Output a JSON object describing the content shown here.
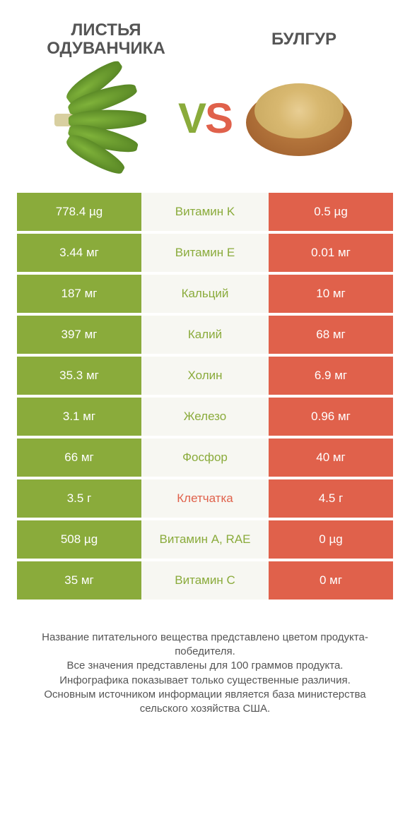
{
  "colors": {
    "green": "#8aab3b",
    "orange": "#e0614b",
    "mid_bg": "#f7f7f2",
    "text": "#555555"
  },
  "header": {
    "left_title": "ЛИСТЬЯ ОДУВАНЧИКА",
    "right_title": "БУЛГУР",
    "vs_v": "V",
    "vs_s": "S"
  },
  "table": {
    "rows": [
      {
        "left": "778.4 µg",
        "nutrient": "Витамин K",
        "right": "0.5 µg",
        "winner": "left"
      },
      {
        "left": "3.44 мг",
        "nutrient": "Витамин E",
        "right": "0.01 мг",
        "winner": "left"
      },
      {
        "left": "187 мг",
        "nutrient": "Кальций",
        "right": "10 мг",
        "winner": "left"
      },
      {
        "left": "397 мг",
        "nutrient": "Калий",
        "right": "68 мг",
        "winner": "left"
      },
      {
        "left": "35.3 мг",
        "nutrient": "Холин",
        "right": "6.9 мг",
        "winner": "left"
      },
      {
        "left": "3.1 мг",
        "nutrient": "Железо",
        "right": "0.96 мг",
        "winner": "left"
      },
      {
        "left": "66 мг",
        "nutrient": "Фосфор",
        "right": "40 мг",
        "winner": "left"
      },
      {
        "left": "3.5 г",
        "nutrient": "Клетчатка",
        "right": "4.5 г",
        "winner": "right"
      },
      {
        "left": "508 µg",
        "nutrient": "Витамин A, RAE",
        "right": "0 µg",
        "winner": "left"
      },
      {
        "left": "35 мг",
        "nutrient": "Витамин C",
        "right": "0 мг",
        "winner": "left"
      }
    ]
  },
  "footer": {
    "line1": "Название питательного вещества представлено цветом продукта-победителя.",
    "line2": "Все значения представлены для 100 граммов продукта.",
    "line3": "Инфографика показывает только существенные различия.",
    "line4": "Основным источником информации является база министерства сельского хозяйства США."
  }
}
